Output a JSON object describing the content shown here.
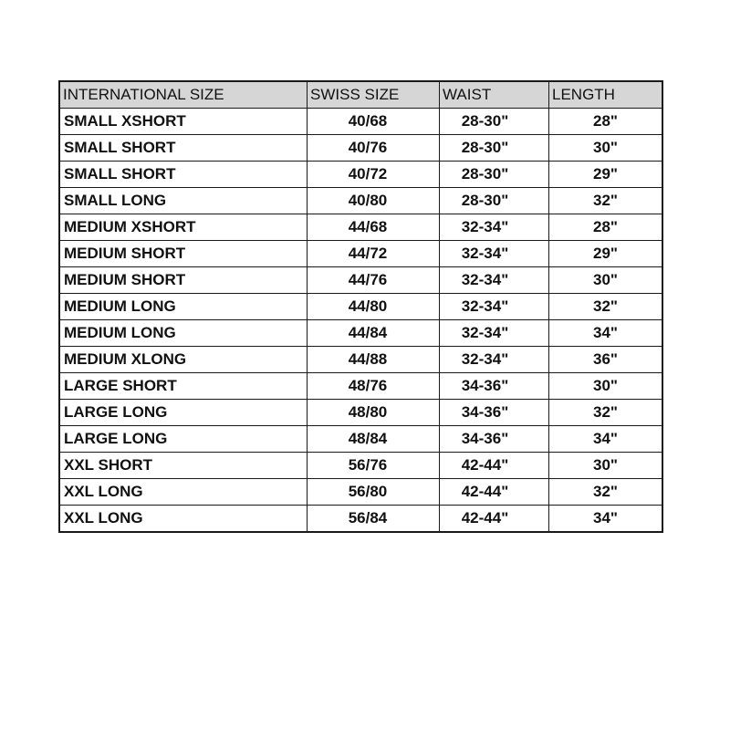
{
  "table": {
    "headers": [
      "INTERNATIONAL SIZE",
      "SWISS SIZE",
      "WAIST",
      "LENGTH"
    ],
    "rows": [
      [
        "SMALL XSHORT",
        "40/68",
        "28-30\"",
        "28\""
      ],
      [
        "SMALL SHORT",
        "40/76",
        "28-30\"",
        "30\""
      ],
      [
        "SMALL SHORT",
        "40/72",
        "28-30\"",
        "29\""
      ],
      [
        "SMALL LONG",
        "40/80",
        "28-30\"",
        "32\""
      ],
      [
        "MEDIUM XSHORT",
        "44/68",
        "32-34\"",
        "28\""
      ],
      [
        "MEDIUM SHORT",
        "44/72",
        "32-34\"",
        "29\""
      ],
      [
        "MEDIUM SHORT",
        "44/76",
        "32-34\"",
        "30\""
      ],
      [
        "MEDIUM LONG",
        "44/80",
        "32-34\"",
        "32\""
      ],
      [
        "MEDIUM LONG",
        "44/84",
        "32-34\"",
        "34\""
      ],
      [
        "MEDIUM XLONG",
        "44/88",
        "32-34\"",
        "36\""
      ],
      [
        "LARGE SHORT",
        "48/76",
        "34-36\"",
        "30\""
      ],
      [
        "LARGE LONG",
        "48/80",
        "34-36\"",
        "32\""
      ],
      [
        "LARGE LONG",
        "48/84",
        "34-36\"",
        "34\""
      ],
      [
        "XXL SHORT",
        "56/76",
        "42-44\"",
        "30\""
      ],
      [
        "XXL LONG",
        "56/80",
        "42-44\"",
        "32\""
      ],
      [
        "XXL LONG",
        "56/84",
        "42-44\"",
        "34\""
      ]
    ]
  }
}
